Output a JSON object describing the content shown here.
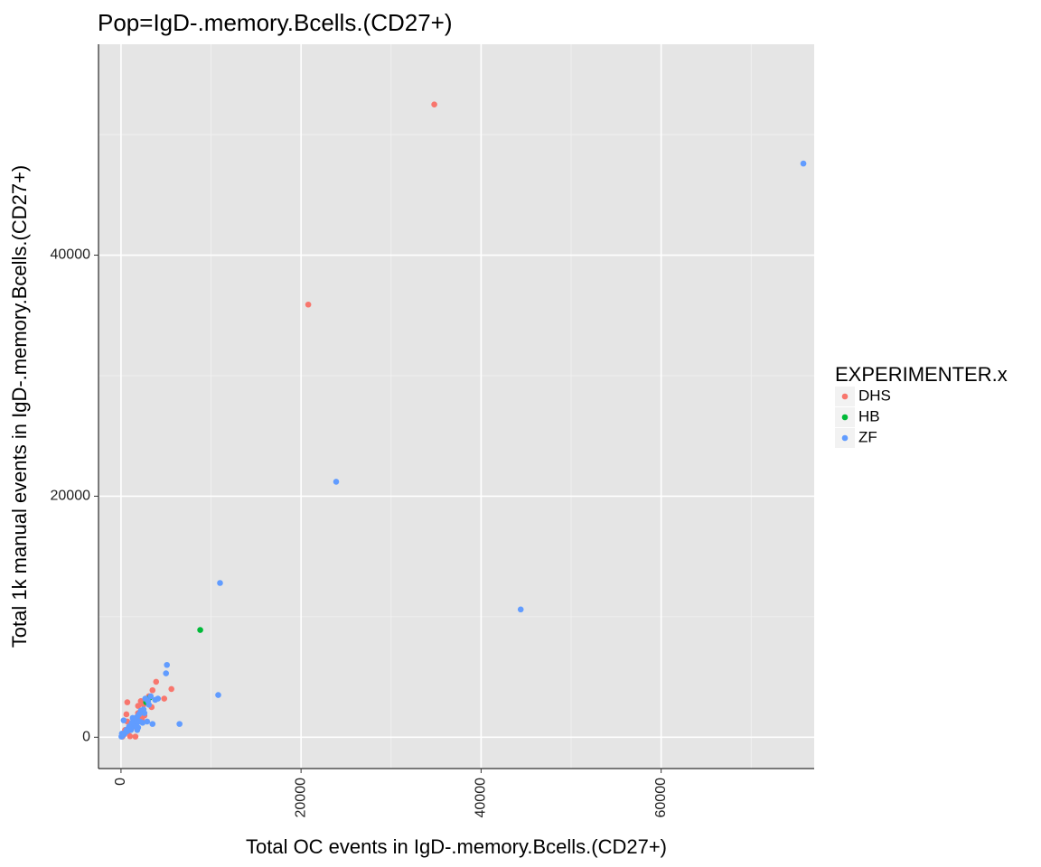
{
  "chart_data": {
    "type": "scatter",
    "title": "Pop=IgD-.memory.Bcells.(CD27+)",
    "xlabel": "Total OC events in IgD-.memory.Bcells.(CD27+)",
    "ylabel": "Total 1k manual events in IgD-.memory.Bcells.(CD27+)",
    "xlim": [
      -2500,
      77000
    ],
    "ylim": [
      -2600,
      57500
    ],
    "x_ticks": [
      0,
      20000,
      40000,
      60000
    ],
    "x_tick_labels": [
      "0",
      "20000",
      "40000",
      "60000"
    ],
    "y_ticks": [
      0,
      20000,
      40000
    ],
    "y_tick_labels": [
      "0",
      "20000",
      "40000"
    ],
    "x_tick_rotation": -90,
    "grid": true,
    "background": "#e5e5e5",
    "legend": {
      "title": "EXPERIMENTER.x",
      "position": "right"
    },
    "series": [
      {
        "name": "DHS",
        "color": "#f8766d",
        "points": [
          [
            34800,
            52500
          ],
          [
            20800,
            35900
          ],
          [
            5600,
            4000
          ],
          [
            4800,
            3200
          ],
          [
            3900,
            4600
          ],
          [
            3500,
            3900
          ],
          [
            3100,
            3400
          ],
          [
            2800,
            3000
          ],
          [
            2500,
            2700
          ],
          [
            2200,
            3000
          ],
          [
            2100,
            2100
          ],
          [
            1900,
            2000
          ],
          [
            1700,
            1600
          ],
          [
            1500,
            1400
          ],
          [
            1300,
            1200
          ],
          [
            1100,
            1100
          ],
          [
            1000,
            900
          ],
          [
            900,
            700
          ],
          [
            800,
            500
          ],
          [
            700,
            2900
          ],
          [
            600,
            1900
          ],
          [
            500,
            500
          ],
          [
            400,
            300
          ],
          [
            300,
            200
          ],
          [
            200,
            100
          ],
          [
            1600,
            50
          ],
          [
            1000,
            80
          ],
          [
            3400,
            2500
          ],
          [
            2600,
            1800
          ],
          [
            1900,
            2600
          ],
          [
            1200,
            800
          ],
          [
            700,
            1300
          ],
          [
            450,
            600
          ],
          [
            150,
            50
          ],
          [
            2300,
            1500
          ]
        ]
      },
      {
        "name": "HB",
        "color": "#00ba38",
        "points": [
          [
            8800,
            8900
          ],
          [
            3200,
            3300
          ],
          [
            2800,
            2900
          ]
        ]
      },
      {
        "name": "ZF",
        "color": "#619cff",
        "points": [
          [
            75800,
            47600
          ],
          [
            23900,
            21200
          ],
          [
            44400,
            10600
          ],
          [
            11000,
            12800
          ],
          [
            10800,
            3500
          ],
          [
            6500,
            1100
          ],
          [
            5100,
            6000
          ],
          [
            5000,
            5300
          ],
          [
            4100,
            3200
          ],
          [
            3800,
            3100
          ],
          [
            3500,
            1100
          ],
          [
            3300,
            3400
          ],
          [
            3100,
            2700
          ],
          [
            2900,
            1300
          ],
          [
            2700,
            3200
          ],
          [
            2500,
            2300
          ],
          [
            2400,
            1200
          ],
          [
            2200,
            2200
          ],
          [
            2000,
            1900
          ],
          [
            1900,
            800
          ],
          [
            1800,
            1700
          ],
          [
            1700,
            1100
          ],
          [
            1600,
            1500
          ],
          [
            1500,
            900
          ],
          [
            1400,
            1400
          ],
          [
            1300,
            1000
          ],
          [
            1200,
            1200
          ],
          [
            1100,
            600
          ],
          [
            1000,
            800
          ],
          [
            900,
            900
          ],
          [
            800,
            700
          ],
          [
            700,
            500
          ],
          [
            600,
            600
          ],
          [
            500,
            400
          ],
          [
            400,
            300
          ],
          [
            300,
            1400
          ],
          [
            250,
            200
          ],
          [
            150,
            100
          ],
          [
            100,
            300
          ],
          [
            50,
            50
          ],
          [
            2100,
            1300
          ],
          [
            1800,
            600
          ],
          [
            1300,
            1600
          ],
          [
            3000,
            3000
          ],
          [
            2600,
            2000
          ]
        ]
      }
    ]
  }
}
